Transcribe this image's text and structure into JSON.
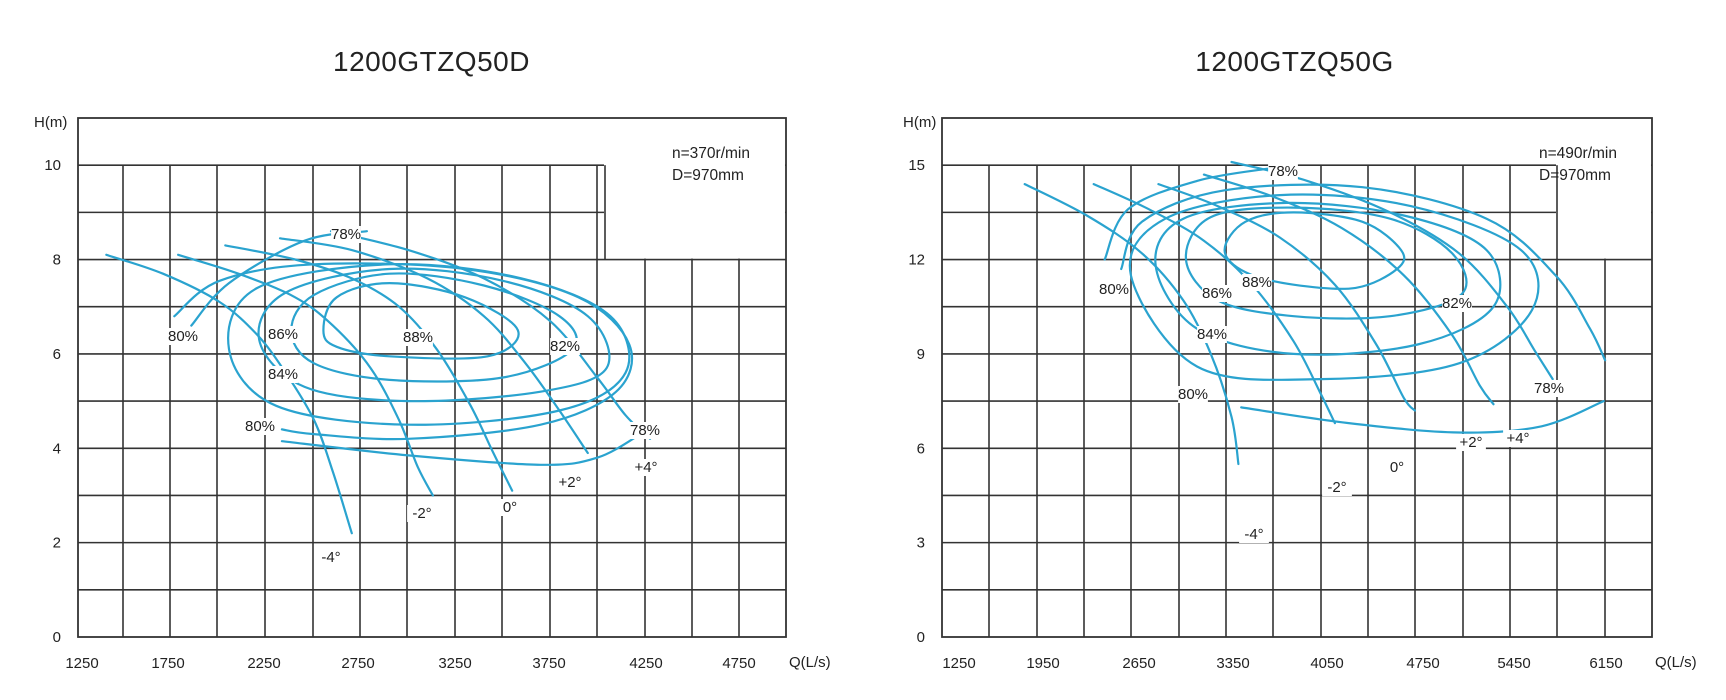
{
  "chart_data": [
    {
      "type": "line",
      "title": "1200GTZQ50D",
      "xlabel": "Q(L/s)",
      "ylabel": "H(m)",
      "xlim": [
        1250,
        5000
      ],
      "ylim": [
        0,
        11
      ],
      "x_ticks": [
        "1250",
        "1750",
        "2250",
        "2750",
        "3250",
        "3750",
        "4250",
        "4750"
      ],
      "y_ticks": [
        "0",
        "2",
        "4",
        "6",
        "8",
        "10"
      ],
      "grid": true,
      "info_lines": [
        "n=370r/min",
        "D=970mm"
      ],
      "blade_angle_curves": [
        {
          "label": "-4°",
          "points": [
            [
              1400,
              8.1
            ],
            [
              1700,
              7.7
            ],
            [
              2000,
              7.1
            ],
            [
              2200,
              6.4
            ],
            [
              2350,
              5.6
            ],
            [
              2500,
              4.6
            ],
            [
              2600,
              3.5
            ],
            [
              2700,
              2.2
            ]
          ]
        },
        {
          "label": "-2°",
          "points": [
            [
              1780,
              8.1
            ],
            [
              2100,
              7.7
            ],
            [
              2400,
              7.2
            ],
            [
              2600,
              6.6
            ],
            [
              2800,
              5.7
            ],
            [
              2950,
              4.6
            ],
            [
              3050,
              3.6
            ],
            [
              3130,
              3.0
            ]
          ]
        },
        {
          "label": "0°",
          "points": [
            [
              2030,
              8.3
            ],
            [
              2400,
              8.0
            ],
            [
              2700,
              7.6
            ],
            [
              2950,
              7.0
            ],
            [
              3150,
              6.1
            ],
            [
              3330,
              4.9
            ],
            [
              3450,
              3.9
            ],
            [
              3550,
              3.1
            ]
          ]
        },
        {
          "label": "+2°",
          "points": [
            [
              2320,
              8.45
            ],
            [
              2700,
              8.2
            ],
            [
              3100,
              7.6
            ],
            [
              3400,
              6.8
            ],
            [
              3620,
              5.8
            ],
            [
              3800,
              4.8
            ],
            [
              3950,
              3.9
            ]
          ]
        },
        {
          "label": "+4°",
          "points": [
            [
              2590,
              8.6
            ],
            [
              3000,
              8.2
            ],
            [
              3400,
              7.6
            ],
            [
              3750,
              6.7
            ],
            [
              4000,
              5.5
            ],
            [
              4150,
              4.7
            ],
            [
              4280,
              4.2
            ]
          ]
        }
      ],
      "efficiency_curves": [
        {
          "label": "88%",
          "closed": true,
          "points": [
            [
              2550,
              6.5
            ],
            [
              2620,
              7.2
            ],
            [
              2900,
              7.5
            ],
            [
              3300,
              7.2
            ],
            [
              3580,
              6.5
            ],
            [
              3420,
              5.95
            ],
            [
              2900,
              5.95
            ],
            [
              2620,
              6.15
            ]
          ]
        },
        {
          "label": "86%",
          "closed": true,
          "points": [
            [
              2380,
              6.5
            ],
            [
              2500,
              7.25
            ],
            [
              2900,
              7.7
            ],
            [
              3400,
              7.45
            ],
            [
              3800,
              6.8
            ],
            [
              3870,
              6.1
            ],
            [
              3500,
              5.5
            ],
            [
              2900,
              5.45
            ],
            [
              2500,
              5.8
            ]
          ]
        },
        {
          "label": "84%",
          "closed": true,
          "points": [
            [
              2210,
              6.3
            ],
            [
              2350,
              7.3
            ],
            [
              2900,
              7.8
            ],
            [
              3500,
              7.55
            ],
            [
              3950,
              6.8
            ],
            [
              4050,
              5.7
            ],
            [
              3700,
              5.2
            ],
            [
              3000,
              5.0
            ],
            [
              2450,
              5.3
            ]
          ]
        },
        {
          "label": "82%",
          "closed": true,
          "points": [
            [
              2050,
              6.1
            ],
            [
              2200,
              7.4
            ],
            [
              2900,
              7.9
            ],
            [
              3600,
              7.6
            ],
            [
              4070,
              6.8
            ],
            [
              4150,
              5.6
            ],
            [
              3800,
              4.8
            ],
            [
              3000,
              4.5
            ],
            [
              2300,
              4.9
            ]
          ]
        },
        {
          "label": "80%",
          "closed": false,
          "points": [
            [
              1760,
              6.8
            ],
            [
              2000,
              7.55
            ],
            [
              2500,
              7.9
            ],
            [
              3300,
              7.8
            ],
            [
              3900,
              7.2
            ],
            [
              4170,
              6.2
            ],
            [
              4100,
              5.2
            ],
            [
              3700,
              4.5
            ],
            [
              3000,
              4.2
            ],
            [
              2500,
              4.3
            ],
            [
              2330,
              4.4
            ]
          ]
        },
        {
          "label": "78%",
          "closed": false,
          "points": [
            [
              1850,
              6.6
            ],
            [
              2050,
              7.5
            ],
            [
              2450,
              8.4
            ],
            [
              2780,
              8.6
            ]
          ]
        },
        {
          "label": "78%",
          "closed": false,
          "points": [
            [
              2330,
              4.15
            ],
            [
              3000,
              3.85
            ],
            [
              3700,
              3.65
            ],
            [
              4000,
              3.8
            ],
            [
              4230,
              4.3
            ]
          ]
        }
      ],
      "point_labels": [
        "78%",
        "80%",
        "86%",
        "88%",
        "82%",
        "84%",
        "80%",
        "78%",
        "-4°",
        "-2°",
        "0°",
        "+2°",
        "+4°"
      ]
    },
    {
      "type": "line",
      "title": "1200GTZQ50G",
      "xlabel": "Q(L/s)",
      "ylabel": "H(m)",
      "xlim": [
        1250,
        6400
      ],
      "ylim": [
        0,
        16.5
      ],
      "x_ticks": [
        "1250",
        "1950",
        "2650",
        "3350",
        "4050",
        "4750",
        "5450",
        "6150"
      ],
      "y_ticks": [
        "0",
        "3",
        "6",
        "9",
        "12",
        "15"
      ],
      "grid": true,
      "info_lines": [
        "n=490r/min",
        "D=970mm"
      ],
      "blade_angle_curves": [
        {
          "label": "-4°",
          "points": [
            [
              1850,
              14.4
            ],
            [
              2300,
              13.4
            ],
            [
              2700,
              12.2
            ],
            [
              3000,
              10.7
            ],
            [
              3200,
              9.0
            ],
            [
              3350,
              7.0
            ],
            [
              3400,
              5.5
            ]
          ]
        },
        {
          "label": "-2°",
          "points": [
            [
              2350,
              14.4
            ],
            [
              2750,
              13.6
            ],
            [
              3150,
              12.6
            ],
            [
              3500,
              11.2
            ],
            [
              3800,
              9.4
            ],
            [
              3990,
              7.8
            ],
            [
              4100,
              6.8
            ]
          ]
        },
        {
          "label": "0°",
          "points": [
            [
              2820,
              14.4
            ],
            [
              3250,
              13.7
            ],
            [
              3700,
              12.7
            ],
            [
              4100,
              11.2
            ],
            [
              4400,
              9.3
            ],
            [
              4600,
              7.6
            ],
            [
              4680,
              7.2
            ]
          ]
        },
        {
          "label": "+2°",
          "points": [
            [
              3150,
              14.7
            ],
            [
              3650,
              14.0
            ],
            [
              4150,
              13.0
            ],
            [
              4600,
              11.5
            ],
            [
              4950,
              9.6
            ],
            [
              5150,
              8.0
            ],
            [
              5250,
              7.4
            ]
          ]
        },
        {
          "label": "+4°",
          "points": [
            [
              3350,
              15.1
            ],
            [
              3900,
              14.5
            ],
            [
              4500,
              13.5
            ],
            [
              5000,
              12.2
            ],
            [
              5350,
              10.5
            ],
            [
              5550,
              9.1
            ],
            [
              5680,
              8.2
            ]
          ]
        }
      ],
      "efficiency_curves": [
        {
          "label": "88%",
          "closed": true,
          "points": [
            [
              3300,
              12.3
            ],
            [
              3450,
              13.2
            ],
            [
              3800,
              13.5
            ],
            [
              4300,
              13.2
            ],
            [
              4580,
              12.3
            ],
            [
              4550,
              11.7
            ],
            [
              4250,
              11.1
            ],
            [
              3800,
              11.2
            ],
            [
              3450,
              11.6
            ]
          ]
        },
        {
          "label": "86%",
          "closed": true,
          "points": [
            [
              3020,
              12.0
            ],
            [
              3200,
              13.35
            ],
            [
              3800,
              13.65
            ],
            [
              4500,
              13.3
            ],
            [
              4950,
              12.2
            ],
            [
              5020,
              10.9
            ],
            [
              4500,
              10.2
            ],
            [
              3800,
              10.2
            ],
            [
              3250,
              10.7
            ]
          ]
        },
        {
          "label": "84%",
          "closed": true,
          "points": [
            [
              2800,
              11.8
            ],
            [
              3000,
              13.3
            ],
            [
              3750,
              13.8
            ],
            [
              4600,
              13.4
            ],
            [
              5200,
              12.3
            ],
            [
              5250,
              10.5
            ],
            [
              4700,
              9.3
            ],
            [
              3800,
              9.0
            ],
            [
              3100,
              9.8
            ]
          ]
        },
        {
          "label": "82%",
          "closed": true,
          "points": [
            [
              2620,
              11.5
            ],
            [
              2870,
              13.3
            ],
            [
              3700,
              14.05
            ],
            [
              4650,
              13.7
            ],
            [
              5450,
              12.3
            ],
            [
              5530,
              10.4
            ],
            [
              5000,
              8.7
            ],
            [
              4000,
              8.2
            ],
            [
              3100,
              8.6
            ]
          ]
        },
        {
          "label": "80%",
          "closed": false,
          "points": [
            [
              2550,
              11.7
            ],
            [
              2700,
              13.2
            ],
            [
              3300,
              14.2
            ],
            [
              4300,
              14.3
            ],
            [
              5200,
              13.3
            ],
            [
              5700,
              11.5
            ],
            [
              5950,
              9.8
            ],
            [
              6060,
              8.8
            ]
          ]
        },
        {
          "label": "78%",
          "closed": false,
          "points": [
            [
              2430,
              12.0
            ],
            [
              2600,
              13.6
            ],
            [
              3100,
              14.5
            ],
            [
              3630,
              14.9
            ]
          ]
        },
        {
          "label": "78%",
          "closed": false,
          "points": [
            [
              3420,
              7.3
            ],
            [
              4200,
              6.8
            ],
            [
              5000,
              6.5
            ],
            [
              5600,
              6.7
            ],
            [
              6050,
              7.5
            ]
          ]
        }
      ],
      "point_labels": [
        "78%",
        "80%",
        "86%",
        "88%",
        "84%",
        "82%",
        "80%",
        "78%",
        "-4°",
        "-2°",
        "0°",
        "+2°",
        "+4°"
      ]
    }
  ]
}
